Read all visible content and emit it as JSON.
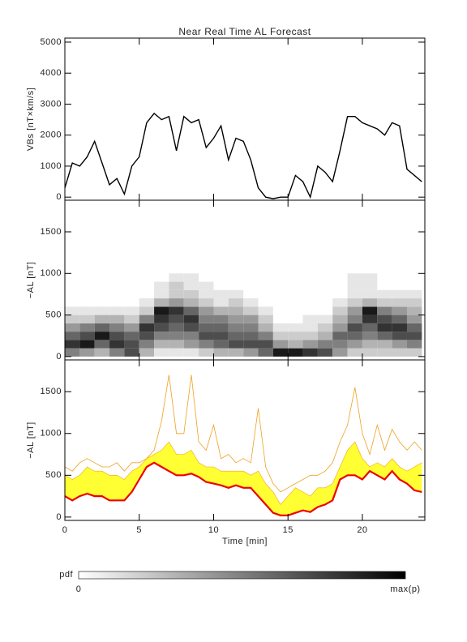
{
  "chart_data": [
    {
      "type": "line",
      "title": "Near Real Time AL Forecast",
      "ylabel": "VBs [nT×km/s]",
      "xlim": [
        0,
        24.2
      ],
      "ylim": [
        -100,
        5130
      ],
      "xticks": [
        0,
        5,
        10,
        15,
        20
      ],
      "yticks": [
        0,
        1000,
        2000,
        3000,
        4000,
        5000
      ],
      "color": "#000000",
      "x": [
        0,
        0.5,
        1,
        1.5,
        2,
        2.5,
        3,
        3.5,
        4,
        4.5,
        5,
        5.5,
        6,
        6.5,
        7,
        7.5,
        8,
        8.5,
        9,
        9.5,
        10,
        10.5,
        11,
        11.5,
        12,
        12.5,
        13,
        13.5,
        14,
        14.5,
        15,
        15.5,
        16,
        16.5,
        17,
        17.5,
        18,
        18.5,
        19,
        19.5,
        20,
        20.5,
        21,
        21.5,
        22,
        22.5,
        23,
        23.5,
        24
      ],
      "values": [
        300,
        1100,
        1000,
        1300,
        1800,
        1100,
        400,
        600,
        100,
        1000,
        1300,
        2400,
        2700,
        2500,
        2600,
        1500,
        2600,
        2400,
        2500,
        1600,
        1900,
        2300,
        1200,
        1900,
        1800,
        1200,
        300,
        0,
        -50,
        0,
        0,
        700,
        500,
        0,
        1000,
        800,
        500,
        1500,
        2600,
        2600,
        2400,
        2300,
        2200,
        2000,
        2400,
        2300,
        900,
        700,
        500
      ]
    },
    {
      "type": "heatmap",
      "ylabel": "−AL [nT]",
      "xlim": [
        0,
        24.2
      ],
      "ylim": [
        -40,
        1880
      ],
      "xticks": [
        0,
        5,
        10,
        15,
        20
      ],
      "yticks": [
        0,
        500,
        1000,
        1500
      ],
      "colorbar_label": "pdf",
      "colorbar_ticks": [
        "0",
        "max(p)"
      ],
      "xbins": [
        0,
        1,
        2,
        3,
        4,
        5,
        6,
        7,
        8,
        9,
        10,
        11,
        12,
        13,
        14,
        15,
        16,
        17,
        18,
        19,
        20,
        21,
        22,
        23,
        24
      ],
      "ybins": [
        0,
        100,
        200,
        300,
        400,
        500,
        600,
        700,
        800,
        900,
        1000
      ],
      "z": [
        [
          0.5,
          0.8,
          0.6,
          0.4,
          0.2,
          0.1,
          0,
          0,
          0,
          0
        ],
        [
          0.4,
          0.9,
          0.7,
          0.5,
          0.2,
          0.1,
          0,
          0,
          0,
          0
        ],
        [
          0.3,
          0.6,
          0.9,
          0.6,
          0.3,
          0.1,
          0,
          0,
          0,
          0
        ],
        [
          0.5,
          0.8,
          0.7,
          0.5,
          0.3,
          0.1,
          0,
          0,
          0,
          0
        ],
        [
          0.7,
          0.7,
          0.6,
          0.4,
          0.2,
          0.1,
          0,
          0,
          0,
          0
        ],
        [
          0.3,
          0.5,
          0.7,
          0.8,
          0.5,
          0.2,
          0.1,
          0,
          0,
          0
        ],
        [
          0.1,
          0.3,
          0.5,
          0.7,
          0.8,
          0.9,
          0.3,
          0.1,
          0.1,
          0
        ],
        [
          0.1,
          0.3,
          0.5,
          0.6,
          0.7,
          0.8,
          0.4,
          0.2,
          0.2,
          0.1
        ],
        [
          0.1,
          0.4,
          0.5,
          0.7,
          0.8,
          0.6,
          0.3,
          0.2,
          0.1,
          0.1
        ],
        [
          0.2,
          0.5,
          0.7,
          0.6,
          0.5,
          0.4,
          0.2,
          0.1,
          0.1,
          0
        ],
        [
          0.3,
          0.6,
          0.7,
          0.6,
          0.5,
          0.3,
          0.1,
          0.1,
          0,
          0
        ],
        [
          0.3,
          0.7,
          0.6,
          0.5,
          0.4,
          0.3,
          0.2,
          0.1,
          0,
          0
        ],
        [
          0.4,
          0.7,
          0.6,
          0.5,
          0.4,
          0.2,
          0.1,
          0,
          0,
          0
        ],
        [
          0.6,
          0.7,
          0.5,
          0.3,
          0.2,
          0.1,
          0,
          0,
          0,
          0
        ],
        [
          0.9,
          0.4,
          0.2,
          0.1,
          0,
          0,
          0,
          0,
          0,
          0
        ],
        [
          0.9,
          0.3,
          0.2,
          0.1,
          0,
          0,
          0,
          0,
          0,
          0
        ],
        [
          0.8,
          0.4,
          0.2,
          0.1,
          0.1,
          0,
          0,
          0,
          0,
          0
        ],
        [
          0.7,
          0.5,
          0.3,
          0.2,
          0.1,
          0,
          0,
          0,
          0,
          0
        ],
        [
          0.4,
          0.5,
          0.6,
          0.4,
          0.3,
          0.2,
          0.1,
          0,
          0,
          0
        ],
        [
          0.2,
          0.4,
          0.6,
          0.7,
          0.5,
          0.4,
          0.2,
          0.1,
          0.1,
          0.1
        ],
        [
          0.2,
          0.3,
          0.5,
          0.6,
          0.8,
          0.9,
          0.3,
          0.1,
          0.1,
          0.1
        ],
        [
          0.2,
          0.3,
          0.6,
          0.8,
          0.7,
          0.5,
          0.2,
          0.1,
          0,
          0
        ],
        [
          0.2,
          0.4,
          0.7,
          0.8,
          0.6,
          0.4,
          0.2,
          0.1,
          0,
          0
        ],
        [
          0.2,
          0.5,
          0.7,
          0.6,
          0.4,
          0.3,
          0.2,
          0.1,
          0,
          0
        ]
      ]
    },
    {
      "type": "band",
      "ylabel": "−AL [nT]",
      "xlabel": "Time [min]",
      "xlim": [
        0,
        24.2
      ],
      "ylim": [
        -40,
        1880
      ],
      "xticks": [
        0,
        5,
        10,
        15,
        20
      ],
      "yticks": [
        0,
        500,
        1000,
        1500
      ],
      "x": [
        0,
        0.5,
        1,
        1.5,
        2,
        2.5,
        3,
        3.5,
        4,
        4.5,
        5,
        5.5,
        6,
        6.5,
        7,
        7.5,
        8,
        8.5,
        9,
        9.5,
        10,
        10.5,
        11,
        11.5,
        12,
        12.5,
        13,
        13.5,
        14,
        14.5,
        15,
        15.5,
        16,
        16.5,
        17,
        17.5,
        18,
        18.5,
        19,
        19.5,
        20,
        20.5,
        21,
        21.5,
        22,
        22.5,
        23,
        23.5,
        24
      ],
      "line": {
        "color": "#ee0000",
        "values": [
          250,
          200,
          250,
          280,
          250,
          250,
          200,
          200,
          200,
          300,
          450,
          600,
          650,
          600,
          550,
          500,
          500,
          520,
          480,
          420,
          400,
          380,
          350,
          380,
          350,
          350,
          250,
          150,
          50,
          20,
          20,
          50,
          80,
          60,
          120,
          150,
          200,
          450,
          500,
          500,
          450,
          550,
          500,
          450,
          550,
          450,
          400,
          320,
          300
        ]
      },
      "band": {
        "color": "#ffff33",
        "values": [
          500,
          450,
          500,
          600,
          550,
          550,
          500,
          500,
          450,
          550,
          600,
          700,
          750,
          800,
          900,
          750,
          750,
          800,
          650,
          600,
          600,
          550,
          550,
          550,
          550,
          500,
          550,
          400,
          300,
          150,
          250,
          350,
          300,
          250,
          350,
          350,
          400,
          600,
          800,
          900,
          700,
          600,
          650,
          600,
          700,
          600,
          550,
          600,
          650
        ]
      },
      "envelope": {
        "color": "#f0a020",
        "values": [
          600,
          550,
          650,
          700,
          650,
          600,
          600,
          650,
          550,
          650,
          650,
          700,
          800,
          1150,
          1700,
          1000,
          1000,
          1700,
          900,
          800,
          1100,
          700,
          750,
          650,
          700,
          650,
          1300,
          600,
          400,
          300,
          350,
          400,
          450,
          500,
          500,
          550,
          650,
          900,
          1100,
          1550,
          1000,
          750,
          1100,
          800,
          1050,
          900,
          800,
          900,
          800
        ]
      }
    }
  ]
}
